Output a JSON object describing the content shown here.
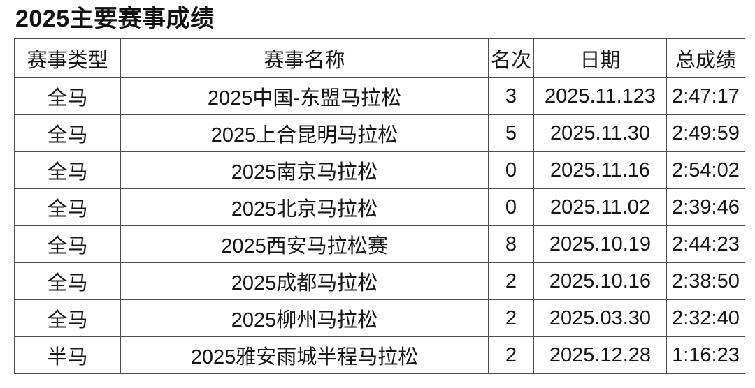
{
  "title": "2025主要赛事成绩",
  "table": {
    "headers": [
      "赛事类型",
      "赛事名称",
      "名次",
      "日期",
      "总成绩"
    ],
    "rows": [
      {
        "type": "全马",
        "name": "2025中国-东盟马拉松",
        "rank": "3",
        "date": "2025.11.123",
        "result": "2:47:17"
      },
      {
        "type": "全马",
        "name": "2025上合昆明马拉松",
        "rank": "5",
        "date": "2025.11.30",
        "result": "2:49:59"
      },
      {
        "type": "全马",
        "name": "2025南京马拉松",
        "rank": "0",
        "date": "2025.11.16",
        "result": "2:54:02"
      },
      {
        "type": "全马",
        "name": "2025北京马拉松",
        "rank": "0",
        "date": "2025.11.02",
        "result": "2:39:46"
      },
      {
        "type": "全马",
        "name": "2025西安马拉松赛",
        "rank": "8",
        "date": "2025.10.19",
        "result": "2:44:23"
      },
      {
        "type": "全马",
        "name": "2025成都马拉松",
        "rank": "2",
        "date": "2025.10.16",
        "result": "2:38:50"
      },
      {
        "type": "全马",
        "name": "2025柳州马拉松",
        "rank": "2",
        "date": "2025.03.30",
        "result": "2:32:40"
      },
      {
        "type": "半马",
        "name": "2025雅安雨城半程马拉松",
        "rank": "2",
        "date": "2025.12.28",
        "result": "1:16:23"
      }
    ]
  },
  "colors": {
    "text": "#161616",
    "border": "#4e4e4e",
    "background": "#ffffff"
  }
}
